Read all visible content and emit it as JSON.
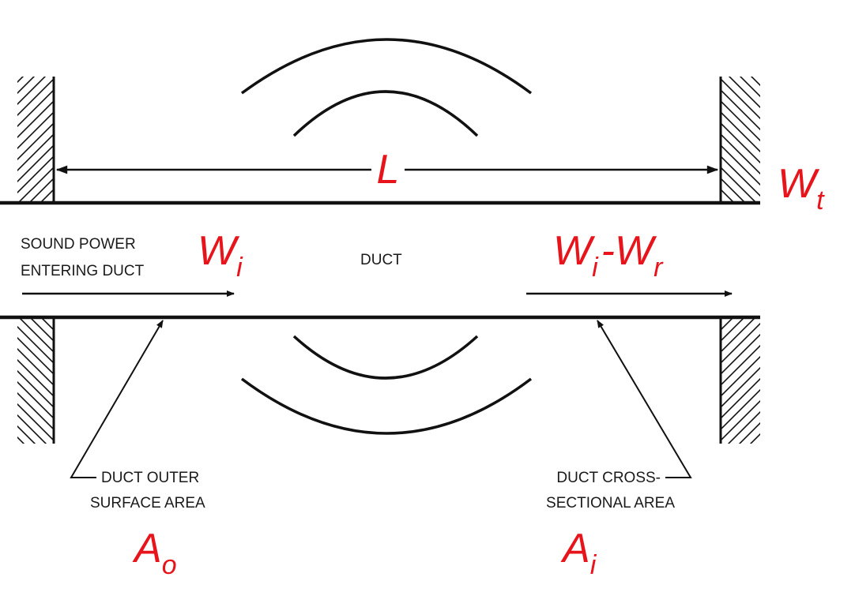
{
  "colors": {
    "line": "#111111",
    "symbol": "#e8141c",
    "background": "#ffffff"
  },
  "labels": {
    "sound_power_line1": "SOUND POWER",
    "sound_power_line2": "ENTERING DUCT",
    "duct": "DUCT",
    "outer_line1": "DUCT OUTER",
    "outer_line2": "SURFACE AREA",
    "cross_line1": "DUCT CROSS-",
    "cross_line2": "SECTIONAL AREA"
  },
  "symbols": {
    "length": "L",
    "transmitted": {
      "base": "W",
      "sub": "t"
    },
    "incident": {
      "base": "W",
      "sub": "i"
    },
    "net": {
      "base1": "W",
      "sub1": "i",
      "sep": "-",
      "base2": "W",
      "sub2": "r"
    },
    "outer_area": {
      "base": "A",
      "sub": "o"
    },
    "cross_area": {
      "base": "A",
      "sub": "i"
    }
  }
}
